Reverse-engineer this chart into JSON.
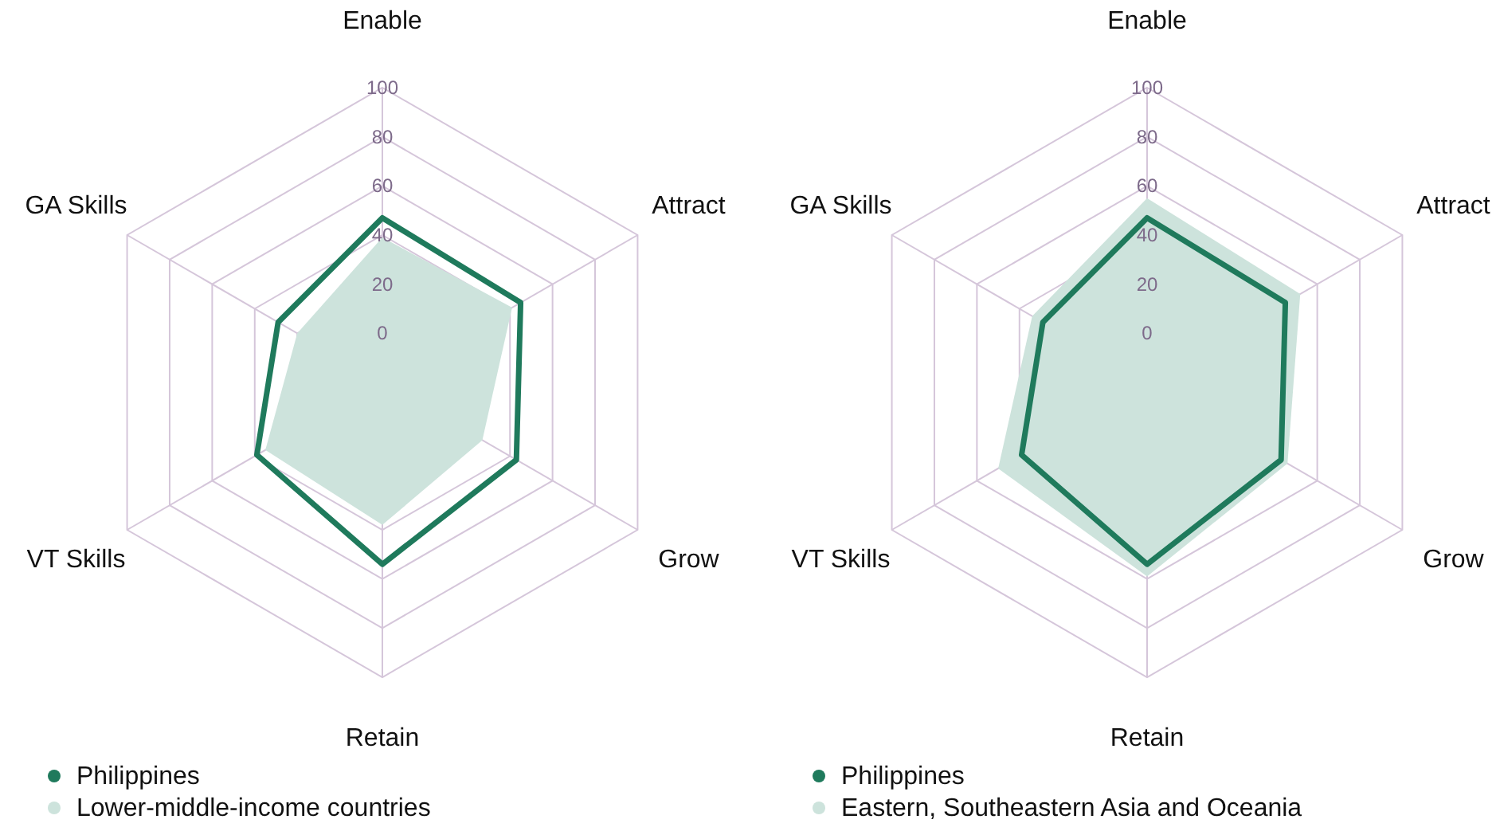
{
  "chart_data": [
    {
      "type": "radar",
      "categories": [
        "Enable",
        "Attract",
        "Grow",
        "Retain",
        "VT Skills",
        "GA Skills"
      ],
      "ylim": [
        -20,
        100
      ],
      "yticks": [
        0,
        20,
        40,
        60,
        80,
        100
      ],
      "grid": true,
      "legend": "bottom left",
      "series": [
        {
          "name": "Philippines",
          "color": "#1f7a5c",
          "values": [
            47,
            45,
            43,
            54,
            39,
            29
          ]
        },
        {
          "name": "Lower-middle-income countries",
          "type": "area",
          "color": "#cde3dc",
          "values": [
            39,
            41,
            27,
            38,
            35,
            20
          ]
        }
      ]
    },
    {
      "type": "radar",
      "categories": [
        "Enable",
        "Attract",
        "Grow",
        "Retain",
        "VT Skills",
        "GA Skills"
      ],
      "ylim": [
        -20,
        100
      ],
      "yticks": [
        0,
        20,
        40,
        60,
        80,
        100
      ],
      "grid": true,
      "legend": "bottom left",
      "series": [
        {
          "name": "Philippines",
          "color": "#1f7a5c",
          "values": [
            47,
            45,
            43,
            54,
            39,
            29
          ]
        },
        {
          "name": "Eastern, Southeastern Asia and Oceania",
          "type": "area",
          "color": "#cde3dc",
          "values": [
            55,
            52,
            46,
            59,
            50,
            34
          ]
        }
      ]
    }
  ]
}
